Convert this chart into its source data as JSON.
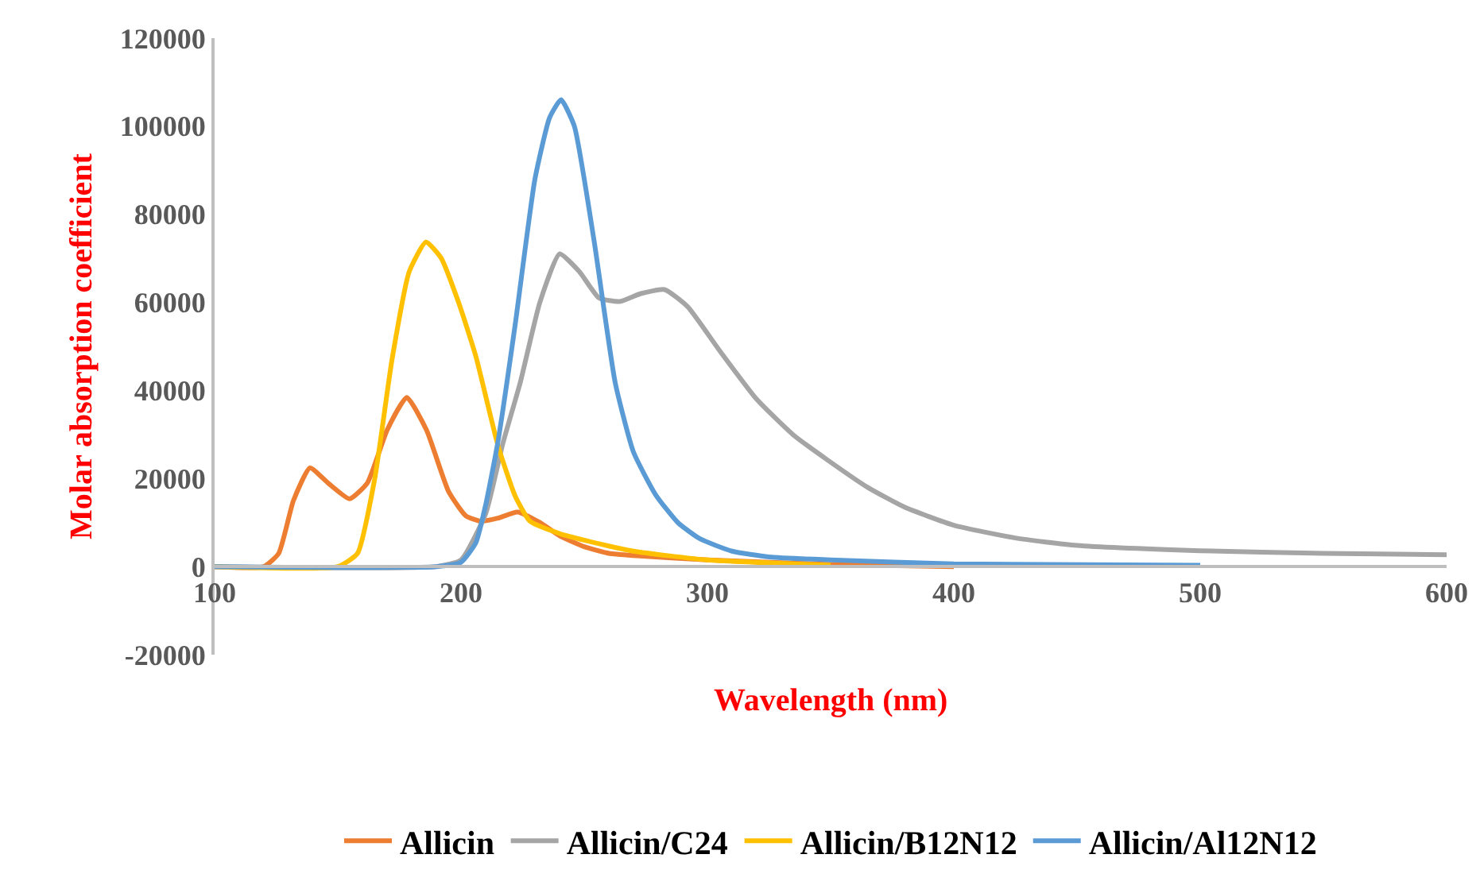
{
  "chart_data": {
    "type": "line",
    "xlabel": "Wavelength (nm)",
    "ylabel": "Molar absorption coefficient",
    "xlim": [
      100,
      600
    ],
    "xticks": [
      100,
      200,
      300,
      400,
      500,
      600
    ],
    "ylim": [
      -20000,
      120000
    ],
    "yticks": [
      -20000,
      0,
      20000,
      40000,
      60000,
      80000,
      100000,
      120000
    ],
    "grid": false,
    "legend": "bottom",
    "marker": "none",
    "line_style": "solid",
    "series": [
      {
        "name": "Allicin",
        "color": "#ed7d31",
        "x": [
          100,
          120,
          126,
          132,
          138.7,
          146,
          154.8,
          162,
          170,
          178,
          186,
          195,
          202,
          208,
          215,
          223,
          232,
          240,
          250,
          260,
          270,
          300,
          350,
          400
        ],
        "values": [
          0,
          0,
          3000,
          15000,
          22400,
          19000,
          15400,
          19000,
          31000,
          38400,
          31000,
          17000,
          11500,
          10300,
          11000,
          12400,
          10000,
          7000,
          4500,
          3000,
          2500,
          1500,
          500,
          0
        ]
      },
      {
        "name": "Allicin/C24",
        "color": "#a5a5a5",
        "x": [
          100,
          190,
          200,
          210,
          217,
          224,
          232,
          240,
          248,
          256,
          264.5,
          273,
          282.6,
          292,
          305,
          320,
          335.5,
          348,
          365,
          380,
          400,
          425,
          450,
          500,
          550,
          600
        ],
        "values": [
          0,
          0,
          1500,
          12000,
          28000,
          41700,
          60000,
          71000,
          67000,
          61000,
          60200,
          62000,
          62900,
          59000,
          49000,
          38000,
          29600,
          24500,
          18000,
          13500,
          9400,
          6500,
          4800,
          3600,
          3000,
          2700
        ]
      },
      {
        "name": "Allicin/B12N12",
        "color": "#ffc000",
        "x": [
          100,
          150,
          158,
          165,
          172,
          179,
          185.8,
          192,
          199,
          206,
          215,
          222,
          228,
          240,
          250,
          270,
          300,
          350
        ],
        "values": [
          0,
          0,
          3000,
          20000,
          47000,
          67000,
          73700,
          70000,
          60000,
          47800,
          27500,
          16000,
          10300,
          7500,
          6000,
          3500,
          1500,
          300
        ]
      },
      {
        "name": "Allicin/Al12N12",
        "color": "#5b9bd5",
        "x": [
          100,
          190,
          200,
          206,
          210,
          215,
          222,
          230,
          236,
          240.6,
          246,
          254,
          262.6,
          270,
          279,
          288,
          297,
          310,
          325,
          350,
          400,
          500
        ],
        "values": [
          0,
          0,
          1000,
          5400,
          14000,
          28400,
          55000,
          88000,
          102000,
          106000,
          100000,
          74000,
          41700,
          26000,
          16300,
          10000,
          6300,
          3500,
          2200,
          1500,
          600,
          300
        ]
      }
    ]
  }
}
